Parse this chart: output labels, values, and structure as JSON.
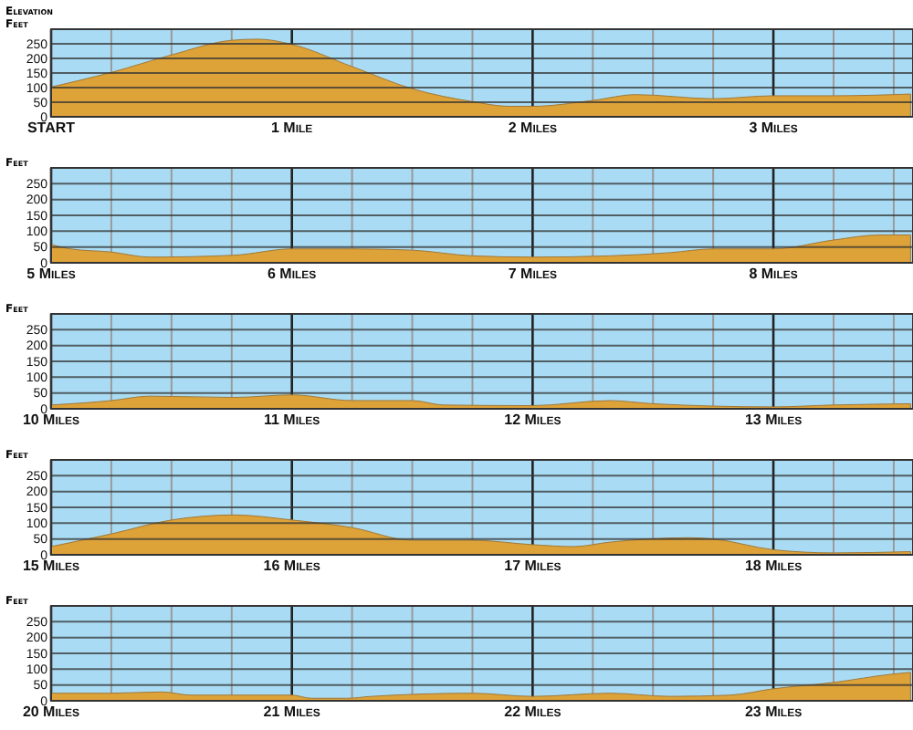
{
  "chart_data": [
    {
      "type": "area",
      "title": "Elevation",
      "ylabel": "Feet",
      "xlim": [
        0,
        3.58
      ],
      "ylim": [
        0,
        300
      ],
      "yticks": [
        0,
        50,
        100,
        150,
        200,
        250
      ],
      "grid": true,
      "color": "#dda238",
      "xticks": [
        {
          "value": 0,
          "label": "START"
        },
        {
          "value": 0.25,
          "label": null
        },
        {
          "value": 0.5,
          "label": null
        },
        {
          "value": 0.75,
          "label": null
        },
        {
          "value": 1,
          "label": "1 Mile"
        },
        {
          "value": 1.25,
          "label": null
        },
        {
          "value": 1.5,
          "label": null
        },
        {
          "value": 1.75,
          "label": null
        },
        {
          "value": 2,
          "label": "2 Miles"
        },
        {
          "value": 2.25,
          "label": null
        },
        {
          "value": 2.5,
          "label": null
        },
        {
          "value": 2.75,
          "label": null
        },
        {
          "value": 3,
          "label": "3 Miles"
        },
        {
          "value": 3.25,
          "label": null
        },
        {
          "value": 3.5,
          "label": null
        }
      ],
      "x": [
        0,
        0.25,
        0.5,
        0.75,
        0.86,
        1,
        1.25,
        1.5,
        1.75,
        1.9,
        2,
        2.25,
        2.43,
        2.75,
        3,
        3.25,
        3.57
      ],
      "values": [
        102,
        152,
        212,
        262,
        266,
        248,
        172,
        96,
        52,
        36,
        36,
        56,
        76,
        62,
        72,
        72,
        78
      ]
    },
    {
      "type": "area",
      "ylabel": "Feet",
      "xlim": [
        5,
        8.58
      ],
      "ylim": [
        0,
        300
      ],
      "yticks": [
        0,
        50,
        100,
        150,
        200,
        250
      ],
      "grid": true,
      "color": "#dda238",
      "xticks": [
        {
          "value": 5,
          "label": "5 Miles"
        },
        {
          "value": 5.25,
          "label": null
        },
        {
          "value": 5.5,
          "label": null
        },
        {
          "value": 5.75,
          "label": null
        },
        {
          "value": 6,
          "label": "6 Miles"
        },
        {
          "value": 6.25,
          "label": null
        },
        {
          "value": 6.5,
          "label": null
        },
        {
          "value": 6.75,
          "label": null
        },
        {
          "value": 7,
          "label": "7 Miles"
        },
        {
          "value": 7.25,
          "label": null
        },
        {
          "value": 7.5,
          "label": null
        },
        {
          "value": 7.75,
          "label": null
        },
        {
          "value": 8,
          "label": "8 Miles"
        },
        {
          "value": 8.25,
          "label": null
        },
        {
          "value": 8.5,
          "label": null
        }
      ],
      "x": [
        5,
        5.08,
        5.25,
        5.41,
        5.76,
        6,
        6.25,
        6.5,
        6.75,
        7,
        7.32,
        7.57,
        7.75,
        8,
        8.25,
        8.44,
        8.57
      ],
      "values": [
        58,
        44,
        34,
        18,
        24,
        44,
        44,
        40,
        22,
        18,
        22,
        32,
        44,
        44,
        72,
        88,
        88
      ]
    },
    {
      "type": "area",
      "ylabel": "Feet",
      "xlim": [
        10,
        13.58
      ],
      "ylim": [
        0,
        300
      ],
      "yticks": [
        0,
        50,
        100,
        150,
        200,
        250
      ],
      "grid": true,
      "color": "#dda238",
      "xticks": [
        {
          "value": 10,
          "label": "10 Miles"
        },
        {
          "value": 10.25,
          "label": null
        },
        {
          "value": 10.5,
          "label": null
        },
        {
          "value": 10.75,
          "label": null
        },
        {
          "value": 11,
          "label": "11 Miles"
        },
        {
          "value": 11.25,
          "label": null
        },
        {
          "value": 11.5,
          "label": null
        },
        {
          "value": 11.75,
          "label": null
        },
        {
          "value": 12,
          "label": "12 Miles"
        },
        {
          "value": 12.25,
          "label": null
        },
        {
          "value": 12.5,
          "label": null
        },
        {
          "value": 12.75,
          "label": null
        },
        {
          "value": 13,
          "label": "13 Miles"
        },
        {
          "value": 13.25,
          "label": null
        },
        {
          "value": 13.5,
          "label": null
        }
      ],
      "x": [
        10,
        10.25,
        10.41,
        10.76,
        11,
        11.25,
        11.5,
        11.63,
        12,
        12.32,
        12.5,
        13,
        13.25,
        13.57
      ],
      "values": [
        12,
        26,
        40,
        36,
        44,
        26,
        26,
        12,
        10,
        26,
        16,
        6,
        12,
        16
      ]
    },
    {
      "type": "area",
      "ylabel": "Feet",
      "xlim": [
        15,
        18.58
      ],
      "ylim": [
        0,
        300
      ],
      "yticks": [
        0,
        50,
        100,
        150,
        200,
        250
      ],
      "grid": true,
      "color": "#dda238",
      "xticks": [
        {
          "value": 15,
          "label": "15 Miles"
        },
        {
          "value": 15.25,
          "label": null
        },
        {
          "value": 15.5,
          "label": null
        },
        {
          "value": 15.75,
          "label": null
        },
        {
          "value": 16,
          "label": "16 Miles"
        },
        {
          "value": 16.25,
          "label": null
        },
        {
          "value": 16.5,
          "label": null
        },
        {
          "value": 16.75,
          "label": null
        },
        {
          "value": 17,
          "label": "17 Miles"
        },
        {
          "value": 17.25,
          "label": null
        },
        {
          "value": 17.5,
          "label": null
        },
        {
          "value": 17.75,
          "label": null
        },
        {
          "value": 18,
          "label": "18 Miles"
        },
        {
          "value": 18.25,
          "label": null
        },
        {
          "value": 18.5,
          "label": null
        }
      ],
      "x": [
        15,
        15.25,
        15.5,
        15.76,
        16,
        16.25,
        16.5,
        16.75,
        17,
        17.17,
        17.32,
        17.65,
        17.75,
        18,
        18.25,
        18.57
      ],
      "values": [
        26,
        66,
        110,
        126,
        110,
        86,
        46,
        46,
        32,
        26,
        40,
        54,
        50,
        16,
        6,
        10
      ]
    },
    {
      "type": "area",
      "ylabel": "Feet",
      "xlim": [
        20,
        23.58
      ],
      "ylim": [
        0,
        300
      ],
      "yticks": [
        0,
        50,
        100,
        150,
        200,
        250
      ],
      "grid": true,
      "color": "#dda238",
      "xticks": [
        {
          "value": 20,
          "label": "20 Miles"
        },
        {
          "value": 20.25,
          "label": null
        },
        {
          "value": 20.5,
          "label": null
        },
        {
          "value": 20.75,
          "label": null
        },
        {
          "value": 21,
          "label": "21 Miles"
        },
        {
          "value": 21.25,
          "label": null
        },
        {
          "value": 21.5,
          "label": null
        },
        {
          "value": 21.75,
          "label": null
        },
        {
          "value": 22,
          "label": "22 Miles"
        },
        {
          "value": 22.25,
          "label": null
        },
        {
          "value": 22.5,
          "label": null
        },
        {
          "value": 22.75,
          "label": null
        },
        {
          "value": 23,
          "label": "23 Miles"
        },
        {
          "value": 23.25,
          "label": null
        },
        {
          "value": 23.5,
          "label": null
        }
      ],
      "x": [
        20,
        20.25,
        20.46,
        20.58,
        21,
        21.08,
        21.23,
        21.33,
        21.75,
        22,
        22.32,
        22.57,
        22.82,
        23,
        23.25,
        23.49,
        23.57
      ],
      "values": [
        24,
        24,
        28,
        18,
        18,
        8,
        8,
        14,
        24,
        14,
        24,
        14,
        18,
        38,
        58,
        84,
        90
      ]
    }
  ]
}
